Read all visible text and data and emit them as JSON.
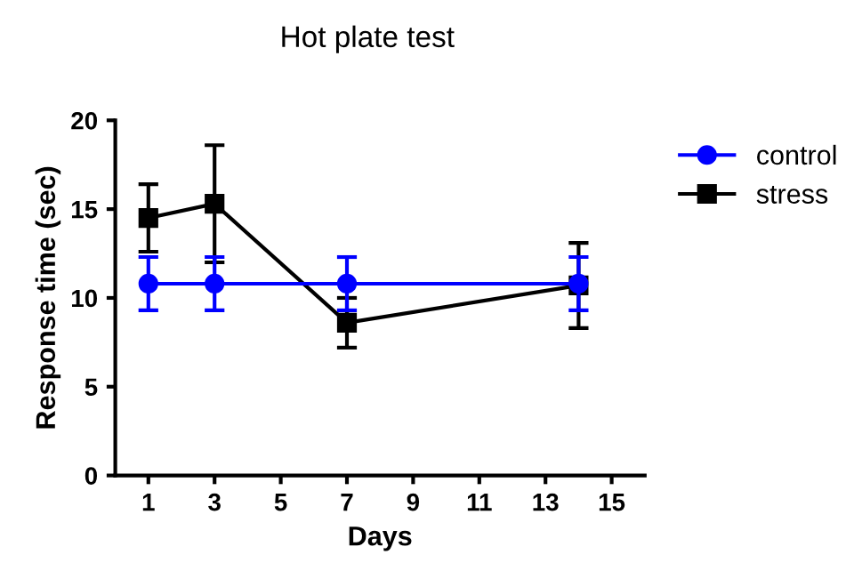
{
  "chart_data": {
    "type": "line",
    "title": "Hot plate test",
    "xlabel": "Days",
    "ylabel": "Response time (sec)",
    "x": [
      1,
      3,
      7,
      14
    ],
    "series": [
      {
        "name": "control",
        "color": "#0000ff",
        "marker": "circle",
        "values": [
          10.8,
          10.8,
          10.8,
          10.8
        ],
        "errors": [
          1.5,
          1.5,
          1.5,
          1.5
        ]
      },
      {
        "name": "stress",
        "color": "#000000",
        "marker": "square",
        "values": [
          14.5,
          15.3,
          8.6,
          10.7
        ],
        "errors": [
          1.9,
          3.3,
          1.4,
          2.4
        ]
      }
    ],
    "xlim": [
      0,
      16
    ],
    "xticks": [
      1,
      3,
      5,
      7,
      9,
      11,
      13,
      15
    ],
    "ylim": [
      0,
      20
    ],
    "yticks": [
      0,
      5,
      10,
      15,
      20
    ],
    "grid": false,
    "legend": "top right",
    "line_style": "solid"
  }
}
